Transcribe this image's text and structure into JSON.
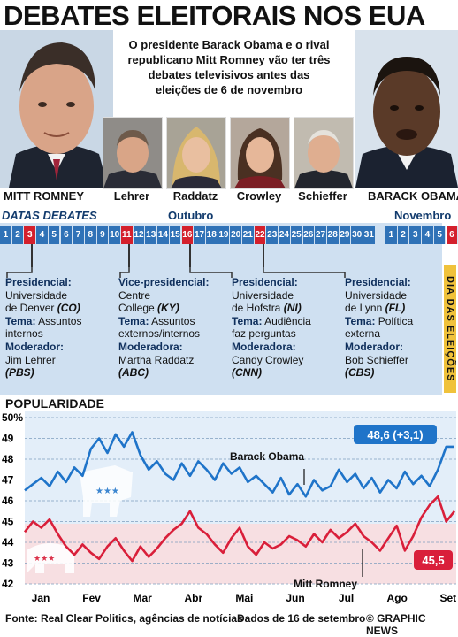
{
  "title": "DEBATES ELEITORAIS NOS EUA",
  "intro": "O presidente Barack Obama e o rival republicano Mitt Romney vão ter três debates televisivos antes das eleições de 6 de novembro",
  "candidates": {
    "left": "MITT ROMNEY",
    "right": "BARACK OBAMA"
  },
  "moderators": [
    "Lehrer",
    "Raddatz",
    "Crowley",
    "Schieffer"
  ],
  "timeline": {
    "label": "DATAS DEBATES",
    "months": [
      "Outubro",
      "Novembro"
    ],
    "october_days": [
      "1",
      "2",
      "3",
      "4",
      "5",
      "6",
      "7",
      "8",
      "9",
      "10",
      "11",
      "12",
      "13",
      "14",
      "15",
      "16",
      "17",
      "18",
      "19",
      "20",
      "21",
      "22",
      "23",
      "24",
      "25",
      "26",
      "27",
      "28",
      "29",
      "30",
      "31"
    ],
    "november_days": [
      "1",
      "2",
      "3",
      "4",
      "5",
      "6"
    ],
    "highlighted_october": [
      3,
      11,
      16,
      22
    ],
    "election_day": 6,
    "vertical_label": "DIA DAS ELEIÇÕES"
  },
  "debates": [
    {
      "l1": "Presidencial:",
      "l2": "Universidade",
      "l3": "de Denver",
      "loc": "(CO)",
      "l4": "Tema:",
      "l4b": "Assuntos",
      "l5": "internos",
      "l6": "Moderador:",
      "l7": "Jim Lehrer",
      "l8": "(PBS)"
    },
    {
      "l1": "Vice-presidencial:",
      "l2": "Centre",
      "l3": "College",
      "loc": "(KY)",
      "l4": "Tema:",
      "l4b": "Assuntos",
      "l5": "externos/internos",
      "l6": "Moderadora:",
      "l7": "Martha Raddatz",
      "l8": "(ABC)"
    },
    {
      "l1": "Presidencial:",
      "l2": "Universidade",
      "l3": "de Hofstra",
      "loc": "(NI)",
      "l4": "Tema:",
      "l4b": "Audiência",
      "l5": "faz perguntas",
      "l6": "Moderadora:",
      "l7": "Candy Crowley",
      "l8": "(CNN)"
    },
    {
      "l1": "Presidencial:",
      "l2": "Universidade",
      "l3": "de Lynn",
      "loc": "(FL)",
      "l4": "Tema:",
      "l4b": "Política",
      "l5": "externa",
      "l6": "Moderador:",
      "l7": "Bob Schieffer",
      "l8": "(CBS)"
    }
  ],
  "popularity_title": "POPULARIDADE",
  "chart_data": {
    "type": "line",
    "y_ticks": [
      "50%",
      "49",
      "48",
      "47",
      "46",
      "45",
      "44",
      "43",
      "42"
    ],
    "ylim": [
      42,
      50
    ],
    "months": [
      "Jan",
      "Fev",
      "Mar",
      "Abr",
      "Mai",
      "Jun",
      "Jul",
      "Ago",
      "Set"
    ],
    "series": [
      {
        "name": "Barack Obama",
        "color": "#1f74c9",
        "values": [
          46.5,
          46.8,
          47.1,
          46.7,
          47.4,
          46.9,
          47.6,
          47.2,
          48.5,
          49.0,
          48.3,
          49.2,
          48.6,
          49.3,
          48.2,
          47.5,
          47.9,
          47.3,
          47.0,
          47.8,
          47.2,
          47.9,
          47.5,
          47.0,
          47.8,
          47.3,
          47.6,
          46.9,
          47.2,
          46.8,
          46.4,
          47.1,
          46.3,
          46.8,
          46.2,
          47.0,
          46.5,
          46.7,
          47.5,
          46.9,
          47.3,
          46.6,
          47.1,
          46.4,
          47.0,
          46.6,
          47.4,
          46.8,
          47.2,
          46.7,
          47.5,
          48.6,
          48.6
        ],
        "label_value": "48,6 (+3,1)"
      },
      {
        "name": "Mitt Romney",
        "color": "#d91f3a",
        "values": [
          44.5,
          45.0,
          44.7,
          45.1,
          44.4,
          43.8,
          43.4,
          43.9,
          43.5,
          43.2,
          43.8,
          44.2,
          43.6,
          43.1,
          43.8,
          43.3,
          43.7,
          44.2,
          44.6,
          44.9,
          45.5,
          44.7,
          44.4,
          43.9,
          43.5,
          44.2,
          44.7,
          43.8,
          43.4,
          44.0,
          43.7,
          43.9,
          44.3,
          44.1,
          43.8,
          44.4,
          44.0,
          44.6,
          44.2,
          44.5,
          44.9,
          44.3,
          44.0,
          43.6,
          44.2,
          44.8,
          43.6,
          44.3,
          45.2,
          45.8,
          46.2,
          45.0,
          45.5
        ],
        "label_value": "45,5"
      }
    ]
  },
  "source": "Fonte: Real Clear Politics, agências de notícias",
  "date_note": "Dados de 16 de setembro",
  "credit": "© GRAPHIC NEWS"
}
